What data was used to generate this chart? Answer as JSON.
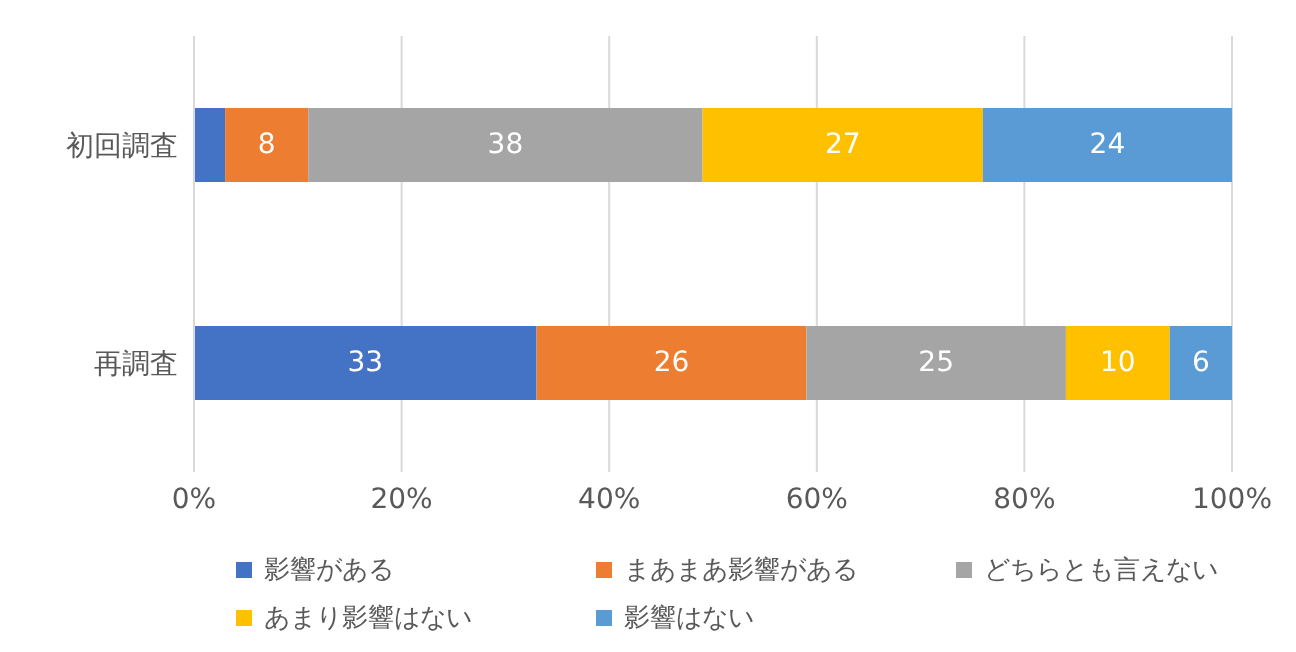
{
  "chart_data": {
    "type": "bar",
    "orientation": "horizontal",
    "stacked": true,
    "categories": [
      "初回調査",
      "再調査"
    ],
    "series": [
      {
        "name": "影響がある",
        "color": "#4472c4",
        "values": [
          3,
          33
        ],
        "value_labels": [
          null,
          "33"
        ]
      },
      {
        "name": "まあまあ影響がある",
        "color": "#ed7d31",
        "values": [
          8,
          26
        ],
        "value_labels": [
          "8",
          "26"
        ]
      },
      {
        "name": "どちらとも言えない",
        "color": "#a5a5a5",
        "values": [
          38,
          25
        ],
        "value_labels": [
          "38",
          "25"
        ]
      },
      {
        "name": "あまり影響はない",
        "color": "#ffc000",
        "values": [
          27,
          10
        ],
        "value_labels": [
          "27",
          "10"
        ]
      },
      {
        "name": "影響はない",
        "color": "#5b9bd5",
        "values": [
          24,
          6
        ],
        "value_labels": [
          "24",
          "6"
        ]
      }
    ],
    "xlim": [
      0,
      100
    ],
    "xticks": [
      {
        "value": 0,
        "label": "0%"
      },
      {
        "value": 20,
        "label": "20%"
      },
      {
        "value": 40,
        "label": "40%"
      },
      {
        "value": 60,
        "label": "60%"
      },
      {
        "value": 80,
        "label": "80%"
      },
      {
        "value": 100,
        "label": "100%"
      }
    ],
    "grid": "x",
    "legend": "bottom"
  }
}
